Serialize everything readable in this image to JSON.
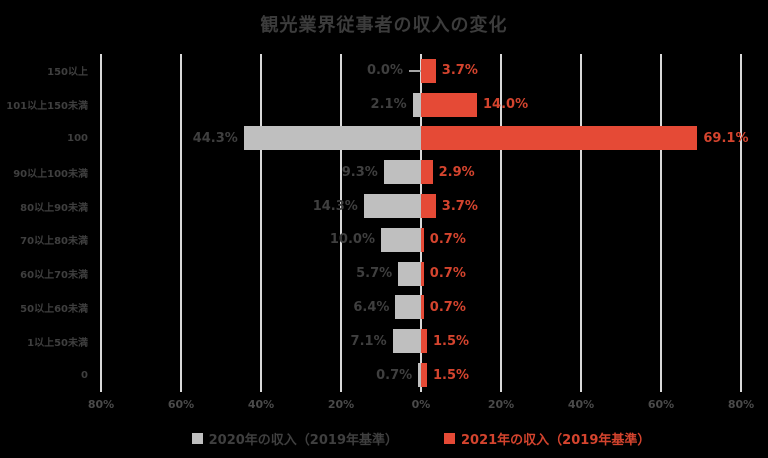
{
  "title": "観光業界従事者の収入の変化",
  "colors": {
    "background": "#000000",
    "title_text": "#3C3C3C",
    "category_text": "#3F3F3F",
    "axis_text": "#4A4A4A",
    "gridline": "#D9D9D9",
    "bar_2020": "#BFBFBF",
    "bar_2021": "#E54A36",
    "label_2020": "#3F3F3F",
    "label_2021": "#D4442E",
    "leader_line": "#A6A6A6"
  },
  "chart_data": {
    "type": "bar",
    "variant": "horizontal-butterfly",
    "title": "観光業界従事者の収入の変化",
    "categories": [
      "150以上",
      "101以上150未満",
      "100",
      "90以上100未満",
      "80以上90未満",
      "70以上80未満",
      "60以上70未満",
      "50以上60未満",
      "1以上50未満",
      "0"
    ],
    "series": [
      {
        "name": "2020年の収入（2019年基準）",
        "side": "left",
        "color": "#BFBFBF",
        "label_color": "#3F3F3F",
        "values": [
          0.0,
          2.1,
          44.3,
          9.3,
          14.3,
          10.0,
          5.7,
          6.4,
          7.1,
          0.7
        ],
        "labels": [
          "0.0%",
          "2.1%",
          "44.3%",
          "9.3%",
          "14.3%",
          "10.0%",
          "5.7%",
          "6.4%",
          "7.1%",
          "0.7%"
        ]
      },
      {
        "name": "2021年の収入（2019年基準）",
        "side": "right",
        "color": "#E54A36",
        "label_color": "#D4442E",
        "values": [
          3.7,
          14.0,
          69.1,
          2.9,
          3.7,
          0.7,
          0.7,
          0.7,
          1.5,
          1.5
        ],
        "labels": [
          "3.7%",
          "14.0%",
          "69.1%",
          "2.9%",
          "3.7%",
          "0.7%",
          "0.7%",
          "0.7%",
          "1.5%",
          "1.5%"
        ]
      }
    ],
    "x_axis": {
      "ticks": [
        "80%",
        "60%",
        "40%",
        "20%",
        "0%",
        "20%",
        "40%",
        "60%",
        "80%"
      ],
      "max_each_side": 80,
      "grid": true
    },
    "legend": [
      {
        "label": "2020年の収入（2019年基準）",
        "color": "#BFBFBF",
        "text_color": "#3F3F3F"
      },
      {
        "label": "2021年の収入（2019年基準）",
        "color": "#E54A36",
        "text_color": "#D4442E"
      }
    ],
    "legend_position": "bottom"
  }
}
